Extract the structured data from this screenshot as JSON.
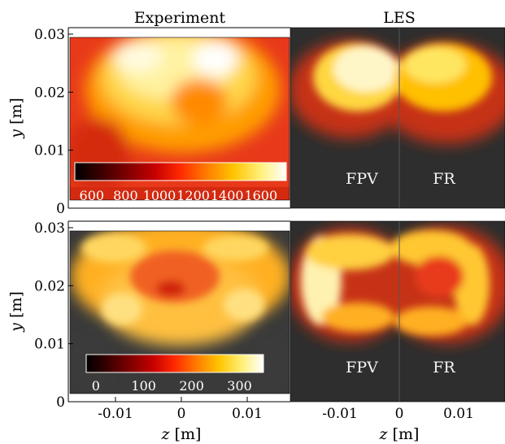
{
  "chart_data": [
    {
      "type": "heatmap",
      "title": "Experiment",
      "xlabel": "",
      "ylabel": "y [m]",
      "y_ticks": [
        "0",
        "0.01",
        "0.02",
        "0.03"
      ],
      "x_ticks": [],
      "colorbar": {
        "ticks": [
          "600",
          "800",
          "1000",
          "1200",
          "1400",
          "1600"
        ],
        "range": [
          500,
          1750
        ]
      }
    },
    {
      "type": "heatmap",
      "title": "LES",
      "panel_labels": [
        "FPV",
        "FR"
      ]
    },
    {
      "type": "heatmap",
      "title": "",
      "xlabel": "z [m]",
      "ylabel": "y [m]",
      "y_ticks": [
        "0",
        "0.01",
        "0.02",
        "0.03"
      ],
      "x_ticks": [
        "-0.01",
        "0",
        "0.01"
      ],
      "colorbar": {
        "ticks": [
          "0",
          "100",
          "200",
          "300"
        ],
        "range": [
          -20,
          350
        ]
      }
    },
    {
      "type": "heatmap",
      "title": "",
      "xlabel": "z [m]",
      "x_ticks": [
        "-0.01",
        "0",
        "0.01"
      ],
      "panel_labels": [
        "FPV",
        "FR"
      ]
    }
  ],
  "colors": {
    "colormap": [
      "#000000",
      "#3a0000",
      "#800000",
      "#c80000",
      "#ff2a00",
      "#ff7a00",
      "#ffc400",
      "#fff07a",
      "#ffffff"
    ],
    "dark_background": "#2e2e2e"
  }
}
